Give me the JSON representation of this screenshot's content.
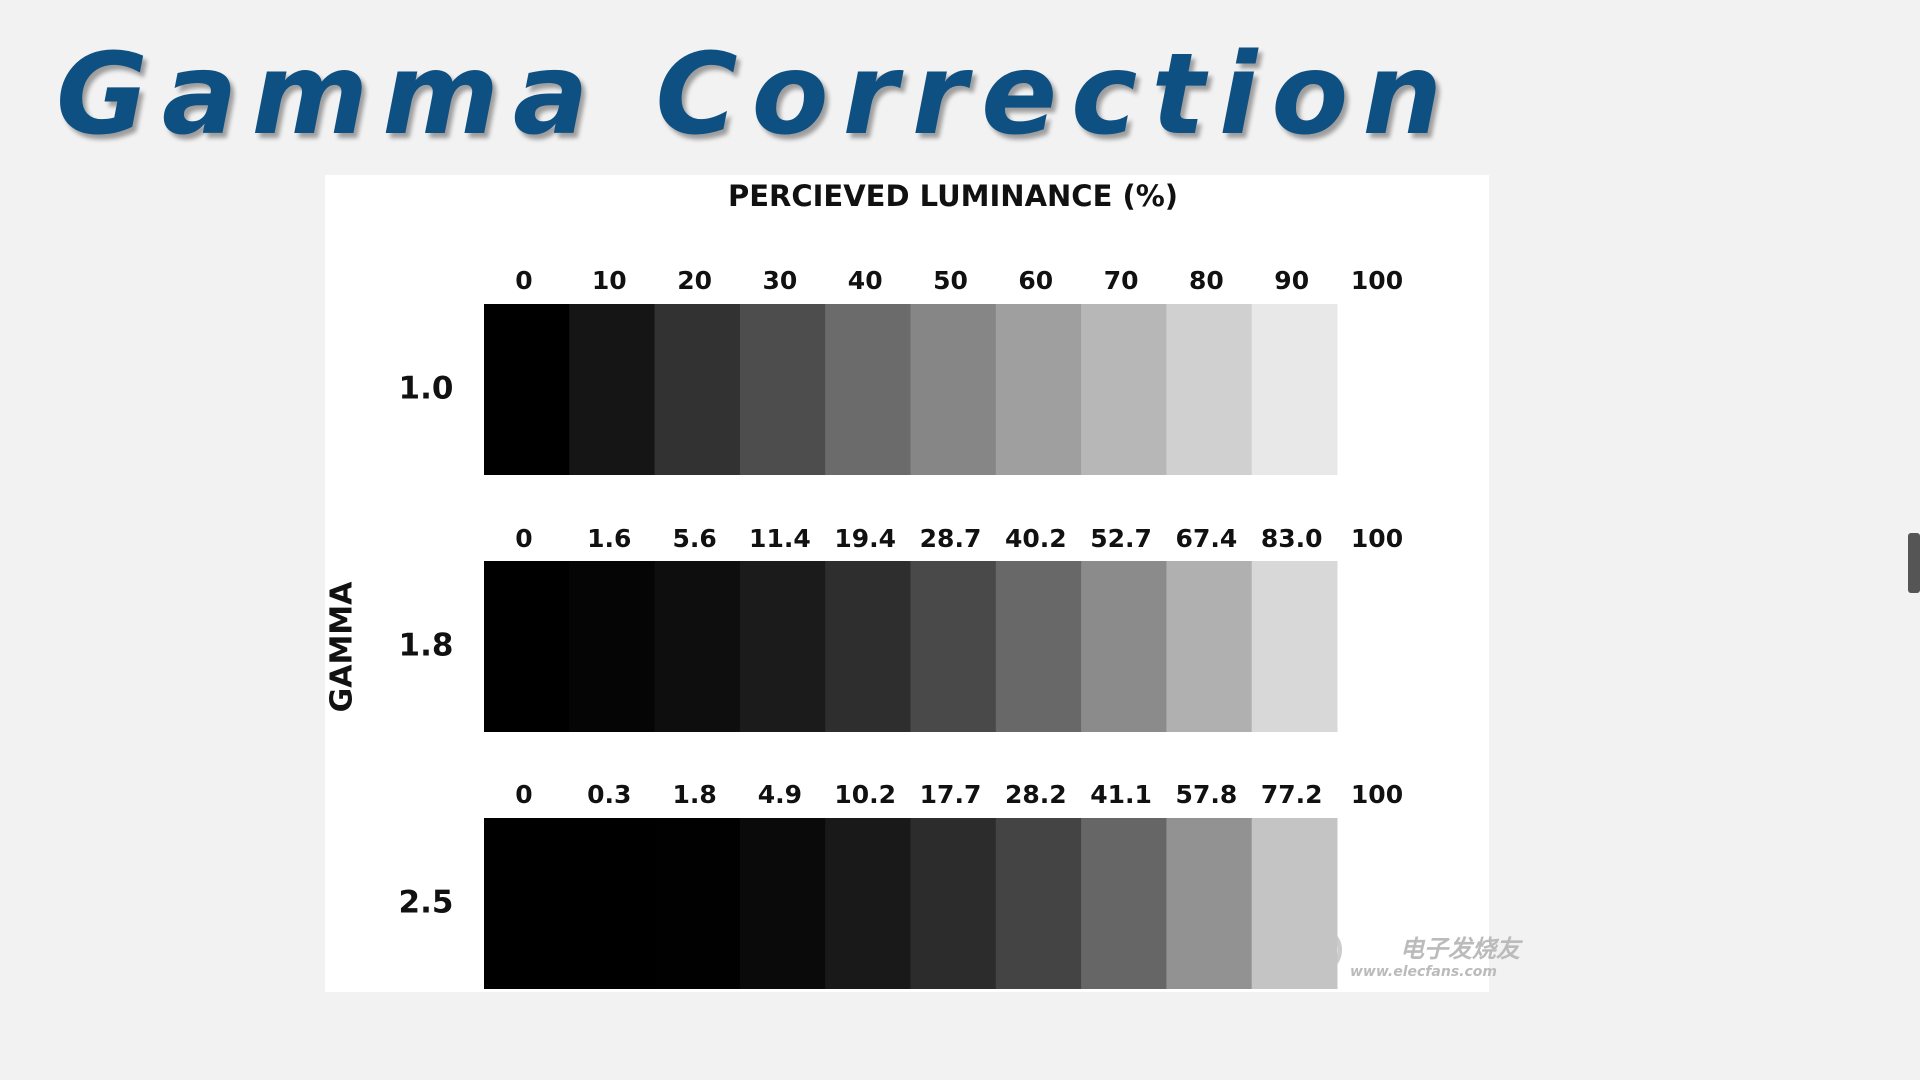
{
  "title": "Gamma Correction",
  "figure": {
    "heading": "PERCIEVED LUMINANCE  (%)",
    "axis_label": "GAMMA",
    "rows": [
      {
        "gamma": "1.0",
        "labels": [
          "0",
          "10",
          "20",
          "30",
          "40",
          "50",
          "60",
          "70",
          "80",
          "90",
          "100"
        ],
        "colors": [
          "#000000",
          "#161516",
          "#333233",
          "#4e4d4e",
          "#6c6b6c",
          "#878687",
          "#a09fa0",
          "#b8b7b8",
          "#d1d0d1",
          "#e9e8e9"
        ]
      },
      {
        "gamma": "1.8",
        "labels": [
          "0",
          "1.6",
          "5.6",
          "11.4",
          "19.4",
          "28.7",
          "40.2",
          "52.7",
          "67.4",
          "83.0",
          "100"
        ],
        "colors": [
          "#000000",
          "#050505",
          "#0f0e0f",
          "#1c1b1c",
          "#2f2e2f",
          "#4a494a",
          "#696869",
          "#8c8b8c",
          "#b1b0b1",
          "#d9d8d9"
        ]
      },
      {
        "gamma": "2.5",
        "labels": [
          "0",
          "0.3",
          "1.8",
          "4.9",
          "10.2",
          "17.7",
          "28.2",
          "41.1",
          "57.8",
          "77.2",
          "100"
        ],
        "colors": [
          "#000000",
          "#000000",
          "#010101",
          "#0a0a0a",
          "#19191a",
          "#2d2c2d",
          "#454445",
          "#676667",
          "#939293",
          "#c5c4c5"
        ]
      }
    ],
    "watermark": "电子发烧友",
    "watermark_url": "www.elecfans.com"
  }
}
